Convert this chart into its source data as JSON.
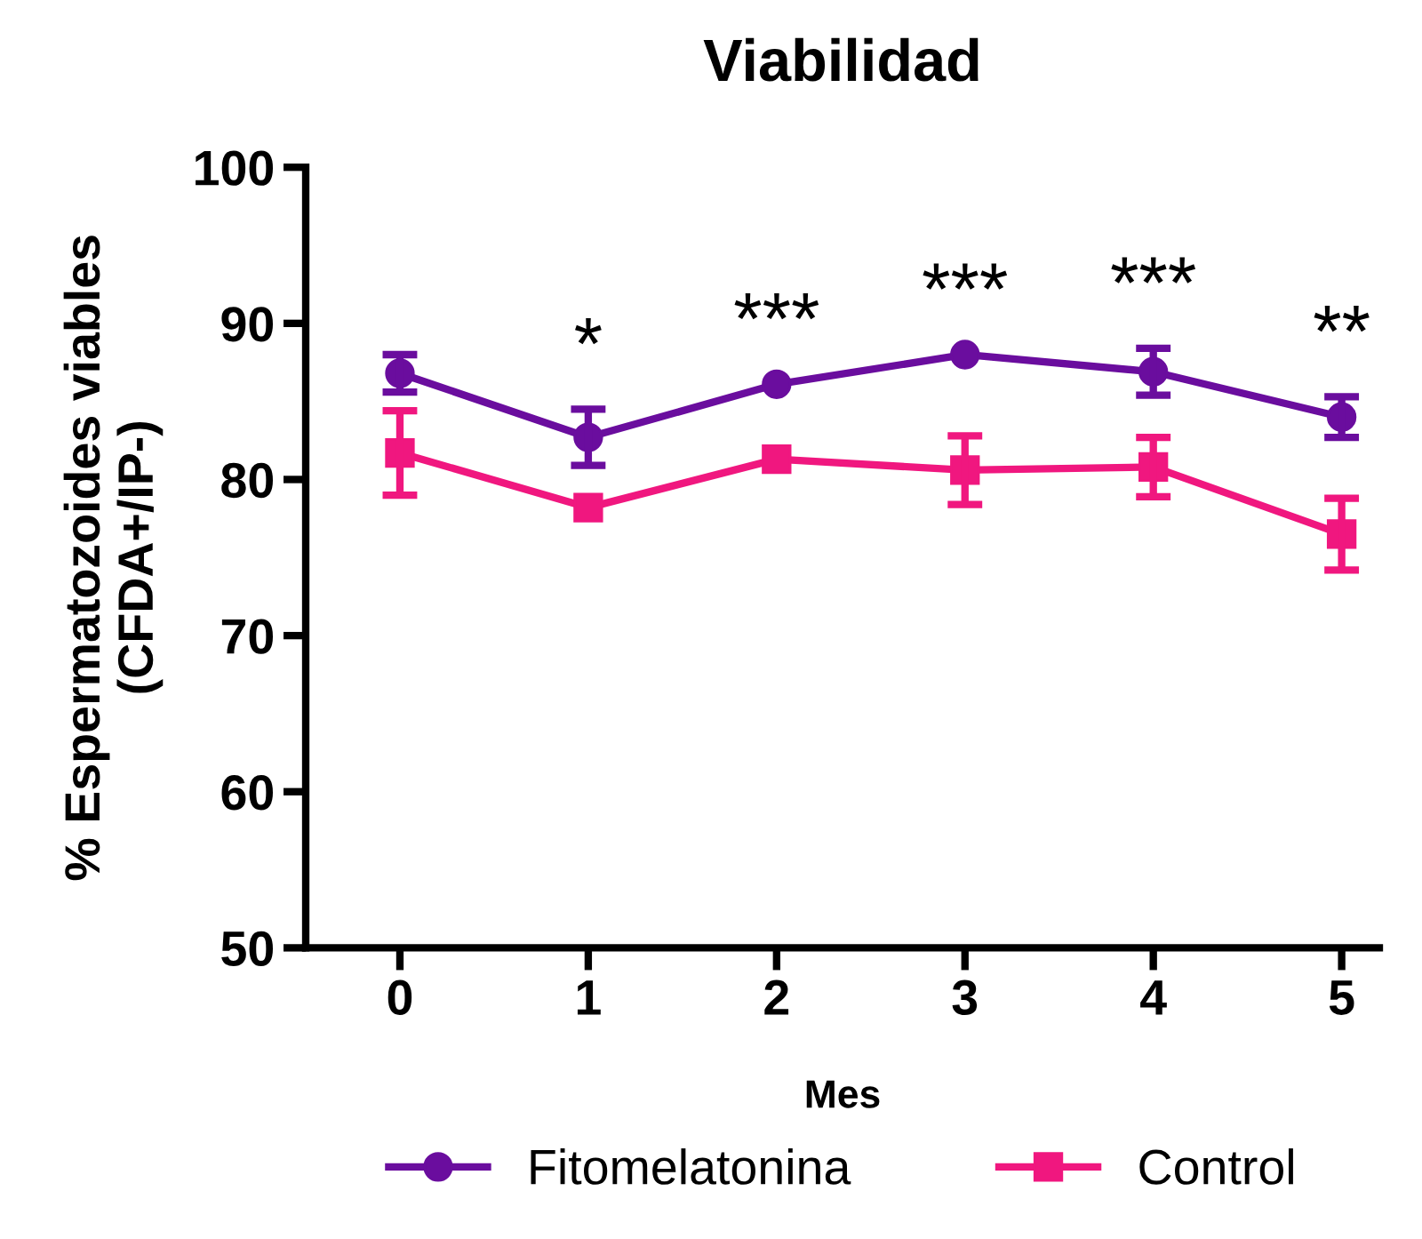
{
  "chart_data": {
    "type": "line",
    "title": "Viabilidad",
    "xlabel": "Mes",
    "ylabel": "% Espermatozoides viables\n(CFDA+/IP-)",
    "x": [
      0,
      1,
      2,
      3,
      4,
      5
    ],
    "xlim": [
      -0.5,
      5.2
    ],
    "xticks": [
      0,
      1,
      2,
      3,
      4,
      5
    ],
    "ylim": [
      50,
      100
    ],
    "yticks": [
      50,
      60,
      70,
      80,
      90,
      100
    ],
    "series": [
      {
        "name": "Fitomelatonina",
        "color": "#6a0d9e",
        "marker": "circle",
        "values": [
          86.8,
          82.7,
          86.1,
          88.0,
          86.9,
          84.0
        ],
        "errors": [
          1.2,
          1.8,
          null,
          null,
          1.5,
          1.3
        ]
      },
      {
        "name": "Control",
        "color": "#f0177f",
        "marker": "square",
        "values": [
          81.7,
          78.2,
          81.3,
          80.6,
          80.8,
          76.5
        ],
        "errors": [
          2.7,
          null,
          null,
          2.2,
          1.9,
          2.3
        ]
      }
    ],
    "annotations": [
      "*",
      "***",
      "***",
      "***",
      "**"
    ],
    "grid": false,
    "legend": "bottom",
    "line_style": "solid"
  }
}
